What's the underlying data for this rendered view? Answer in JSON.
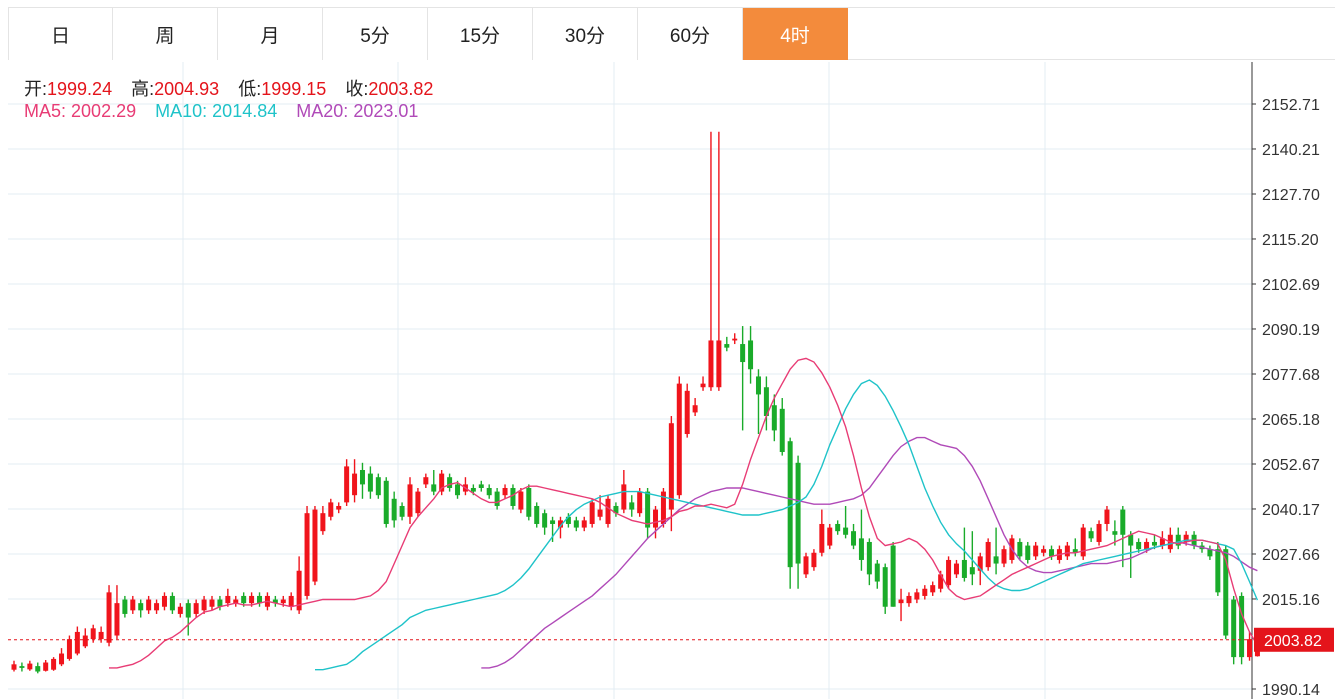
{
  "tabs": [
    {
      "label": "日",
      "active": false
    },
    {
      "label": "周",
      "active": false
    },
    {
      "label": "月",
      "active": false
    },
    {
      "label": "5分",
      "active": false
    },
    {
      "label": "15分",
      "active": false
    },
    {
      "label": "30分",
      "active": false
    },
    {
      "label": "60分",
      "active": false
    },
    {
      "label": "4时",
      "active": true
    }
  ],
  "ohlc": {
    "open_label": "开:",
    "open": "1999.24",
    "high_label": "高:",
    "high": "2004.93",
    "low_label": "低:",
    "low": "1999.15",
    "close_label": "收:",
    "close": "2003.82"
  },
  "ma": {
    "ma5_label": "MA5:",
    "ma5": "2002.29",
    "ma10_label": "MA10:",
    "ma10": "2014.84",
    "ma20_label": "MA20:",
    "ma20": "2023.01"
  },
  "colors": {
    "up": "#f0141c",
    "down": "#1aab2a",
    "ma5": "#e83c75",
    "ma10": "#1fc3c9",
    "ma20": "#b04ab8",
    "grid": "#e3ecf3",
    "accent": "#f38b3c",
    "last_price": "#e4141b"
  },
  "chart_data": {
    "type": "candlestick",
    "y_ticks": [
      "2152.71",
      "2140.21",
      "2127.70",
      "2115.20",
      "2102.69",
      "2090.19",
      "2077.68",
      "2065.18",
      "2052.67",
      "2040.17",
      "2027.66",
      "2015.16",
      "1990.14"
    ],
    "ylim": [
      1988.0,
      2168.0
    ],
    "last_price_label": "2003.82",
    "last_price": 2003.82,
    "grid": true,
    "candles": [
      [
        1995.5,
        1997.0,
        1998.0,
        1995.0
      ],
      [
        1996.5,
        1996.0,
        1997.5,
        1995.0
      ],
      [
        1995.6,
        1997.2,
        1998.0,
        1995.2
      ],
      [
        1996.5,
        1995.0,
        1997.5,
        1994.5
      ],
      [
        1995.2,
        1997.5,
        1998.2,
        1995.0
      ],
      [
        1995.5,
        1998.5,
        1999.0,
        1995.2
      ],
      [
        1997.0,
        2000.0,
        2001.5,
        1996.5
      ],
      [
        1998.5,
        2004.0,
        2005.0,
        1998.0
      ],
      [
        2000.0,
        2006.0,
        2007.5,
        1999.5
      ],
      [
        2002.0,
        2005.0,
        2007.0,
        2001.5
      ],
      [
        2004.0,
        2007.0,
        2008.0,
        2003.0
      ],
      [
        2004.0,
        2006.0,
        2007.5,
        2003.0
      ],
      [
        2003.0,
        2017.0,
        2019.0,
        2002.0
      ],
      [
        2005.0,
        2014.0,
        2019.0,
        2004.0
      ],
      [
        2015.0,
        2011.0,
        2016.0,
        2010.0
      ],
      [
        2012.0,
        2015.0,
        2016.0,
        2011.0
      ],
      [
        2014.0,
        2012.0,
        2015.0,
        2010.0
      ],
      [
        2012.0,
        2015.0,
        2016.0,
        2011.0
      ],
      [
        2012.0,
        2014.0,
        2015.0,
        2011.0
      ],
      [
        2013.0,
        2016.0,
        2017.0,
        2012.0
      ],
      [
        2016.0,
        2012.0,
        2017.0,
        2011.0
      ],
      [
        2011.0,
        2013.0,
        2014.0,
        2010.0
      ],
      [
        2014.0,
        2010.0,
        2015.0,
        2005.0
      ],
      [
        2011.0,
        2014.0,
        2015.0,
        2010.0
      ],
      [
        2012.0,
        2015.0,
        2016.0,
        2011.0
      ],
      [
        2013.0,
        2015.0,
        2016.0,
        2012.0
      ],
      [
        2015.0,
        2013.0,
        2016.0,
        2012.0
      ],
      [
        2014.0,
        2016.0,
        2018.0,
        2013.0
      ],
      [
        2014.0,
        2015.0,
        2016.0,
        2013.0
      ],
      [
        2016.0,
        2014.0,
        2017.0,
        2013.0
      ],
      [
        2014.0,
        2016.0,
        2017.0,
        2013.0
      ],
      [
        2016.0,
        2014.0,
        2017.0,
        2013.0
      ],
      [
        2013.0,
        2016.0,
        2017.0,
        2012.0
      ],
      [
        2015.0,
        2014.0,
        2016.0,
        2013.0
      ],
      [
        2014.0,
        2015.0,
        2016.0,
        2013.0
      ],
      [
        2013.0,
        2016.0,
        2017.0,
        2012.0
      ],
      [
        2012.0,
        2023.0,
        2027.0,
        2011.0
      ],
      [
        2016.0,
        2039.0,
        2041.0,
        2015.0
      ],
      [
        2020.0,
        2040.0,
        2041.0,
        2019.0
      ],
      [
        2034.0,
        2039.0,
        2041.0,
        2033.0
      ],
      [
        2038.0,
        2042.0,
        2043.0,
        2037.0
      ],
      [
        2040.0,
        2041.0,
        2042.0,
        2039.0
      ],
      [
        2042.0,
        2052.0,
        2054.0,
        2041.0
      ],
      [
        2044.0,
        2050.0,
        2054.0,
        2042.0
      ],
      [
        2051.0,
        2047.0,
        2053.0,
        2043.0
      ],
      [
        2050.0,
        2045.0,
        2052.0,
        2043.0
      ],
      [
        2049.0,
        2044.0,
        2050.0,
        2043.0
      ],
      [
        2048.0,
        2036.0,
        2049.0,
        2035.0
      ],
      [
        2043.0,
        2037.0,
        2045.0,
        2035.0
      ],
      [
        2041.0,
        2038.0,
        2042.0,
        2037.0
      ],
      [
        2038.0,
        2047.0,
        2049.0,
        2036.0
      ],
      [
        2039.0,
        2045.0,
        2046.0,
        2038.0
      ],
      [
        2047.0,
        2049.0,
        2050.0,
        2046.0
      ],
      [
        2047.0,
        2045.0,
        2051.0,
        2044.0
      ],
      [
        2045.0,
        2050.0,
        2051.0,
        2044.0
      ],
      [
        2049.0,
        2046.0,
        2050.0,
        2045.0
      ],
      [
        2047.0,
        2044.0,
        2048.0,
        2043.0
      ],
      [
        2045.0,
        2047.0,
        2049.0,
        2044.0
      ],
      [
        2046.0,
        2045.0,
        2047.0,
        2044.0
      ],
      [
        2047.0,
        2046.0,
        2048.0,
        2045.0
      ],
      [
        2046.0,
        2044.0,
        2047.0,
        2043.0
      ],
      [
        2045.0,
        2041.0,
        2046.0,
        2040.0
      ],
      [
        2044.0,
        2046.0,
        2047.0,
        2043.0
      ],
      [
        2046.0,
        2041.0,
        2047.0,
        2040.0
      ],
      [
        2040.0,
        2045.0,
        2046.0,
        2039.0
      ],
      [
        2046.0,
        2038.0,
        2047.0,
        2037.0
      ],
      [
        2041.0,
        2036.0,
        2042.0,
        2035.0
      ],
      [
        2039.0,
        2035.0,
        2040.0,
        2033.0
      ],
      [
        2037.0,
        2036.0,
        2038.0,
        2031.0
      ],
      [
        2035.0,
        2037.0,
        2038.0,
        2032.0
      ],
      [
        2038.0,
        2036.0,
        2039.0,
        2035.0
      ],
      [
        2037.0,
        2035.0,
        2038.0,
        2034.0
      ],
      [
        2035.0,
        2037.0,
        2038.0,
        2034.0
      ],
      [
        2036.0,
        2042.0,
        2043.0,
        2035.0
      ],
      [
        2038.0,
        2040.0,
        2044.0,
        2037.0
      ],
      [
        2036.0,
        2043.0,
        2044.0,
        2035.0
      ],
      [
        2041.0,
        2039.0,
        2042.0,
        2038.0
      ],
      [
        2040.0,
        2047.0,
        2051.0,
        2039.0
      ],
      [
        2042.0,
        2040.0,
        2044.0,
        2038.0
      ],
      [
        2039.0,
        2045.0,
        2046.0,
        2038.0
      ],
      [
        2045.0,
        2035.0,
        2046.0,
        2032.0
      ],
      [
        2035.0,
        2040.0,
        2041.0,
        2032.0
      ],
      [
        2036.0,
        2045.0,
        2046.0,
        2035.0
      ],
      [
        2040.0,
        2064.0,
        2066.0,
        2034.0
      ],
      [
        2044.0,
        2075.0,
        2077.0,
        2043.0
      ],
      [
        2061.0,
        2073.0,
        2075.0,
        2060.0
      ],
      [
        2067.0,
        2069.0,
        2071.0,
        2066.0
      ],
      [
        2074.0,
        2075.0,
        2077.0,
        2073.0
      ],
      [
        2074.0,
        2087.0,
        2145.0,
        2073.0
      ],
      [
        2074.0,
        2087.0,
        2145.0,
        2073.0
      ],
      [
        2086.0,
        2085.0,
        2088.0,
        2084.0
      ],
      [
        2087.0,
        2087.5,
        2089.0,
        2086.0
      ],
      [
        2086.0,
        2081.0,
        2091.0,
        2062.0
      ],
      [
        2087.0,
        2079.0,
        2091.0,
        2075.0
      ],
      [
        2077.0,
        2072.0,
        2079.0,
        2061.0
      ],
      [
        2074.0,
        2066.0,
        2077.0,
        2062.0
      ],
      [
        2069.0,
        2062.0,
        2072.0,
        2059.0
      ],
      [
        2068.0,
        2056.0,
        2071.0,
        2055.0
      ],
      [
        2059.0,
        2024.0,
        2060.0,
        2018.0
      ],
      [
        2053.0,
        2025.0,
        2055.0,
        2018.0
      ],
      [
        2022.0,
        2027.0,
        2028.0,
        2021.0
      ],
      [
        2024.0,
        2028.0,
        2029.0,
        2023.0
      ],
      [
        2028.0,
        2036.0,
        2040.0,
        2027.0
      ],
      [
        2030.0,
        2035.0,
        2036.0,
        2029.0
      ],
      [
        2036.0,
        2034.0,
        2037.0,
        2033.0
      ],
      [
        2035.0,
        2033.0,
        2041.0,
        2032.0
      ],
      [
        2034.0,
        2030.0,
        2036.0,
        2029.0
      ],
      [
        2032.0,
        2026.0,
        2040.0,
        2023.0
      ],
      [
        2031.0,
        2022.0,
        2032.0,
        2019.0
      ],
      [
        2025.0,
        2020.0,
        2026.0,
        2018.0
      ],
      [
        2024.0,
        2013.0,
        2025.0,
        2011.0
      ],
      [
        2030.0,
        2013.0,
        2031.0,
        2013.0
      ],
      [
        2014.0,
        2015.0,
        2018.0,
        2009.0
      ],
      [
        2014.0,
        2016.0,
        2017.0,
        2013.0
      ],
      [
        2015.0,
        2017.0,
        2018.0,
        2014.0
      ],
      [
        2016.0,
        2018.0,
        2019.0,
        2015.0
      ],
      [
        2017.0,
        2019.0,
        2020.0,
        2016.0
      ],
      [
        2018.0,
        2022.0,
        2023.0,
        2017.0
      ],
      [
        2019.0,
        2026.0,
        2027.0,
        2018.0
      ],
      [
        2022.0,
        2025.0,
        2026.0,
        2021.0
      ],
      [
        2026.0,
        2021.0,
        2035.0,
        2020.0
      ],
      [
        2024.0,
        2022.0,
        2034.0,
        2019.0
      ],
      [
        2023.0,
        2027.0,
        2028.0,
        2019.0
      ],
      [
        2024.0,
        2031.0,
        2032.0,
        2023.0
      ],
      [
        2027.0,
        2025.0,
        2035.0,
        2022.0
      ],
      [
        2025.0,
        2029.0,
        2030.0,
        2024.0
      ],
      [
        2026.0,
        2032.0,
        2033.0,
        2025.0
      ],
      [
        2031.0,
        2027.0,
        2032.0,
        2026.0
      ],
      [
        2030.0,
        2026.0,
        2031.0,
        2025.0
      ],
      [
        2027.0,
        2030.0,
        2031.0,
        2026.0
      ],
      [
        2028.0,
        2029.0,
        2030.0,
        2027.0
      ],
      [
        2029.0,
        2027.0,
        2030.0,
        2026.0
      ],
      [
        2026.0,
        2029.0,
        2030.0,
        2025.0
      ],
      [
        2027.0,
        2030.0,
        2031.0,
        2026.0
      ],
      [
        2029.0,
        2028.0,
        2032.0,
        2027.0
      ],
      [
        2027.0,
        2035.0,
        2036.0,
        2026.0
      ],
      [
        2034.0,
        2032.0,
        2035.0,
        2031.0
      ],
      [
        2031.0,
        2036.0,
        2037.0,
        2030.0
      ],
      [
        2036.0,
        2040.0,
        2041.0,
        2034.0
      ],
      [
        2034.0,
        2033.0,
        2037.0,
        2030.0
      ],
      [
        2040.0,
        2033.0,
        2041.0,
        2024.0
      ],
      [
        2033.0,
        2030.0,
        2034.0,
        2021.0
      ],
      [
        2031.0,
        2029.0,
        2032.0,
        2028.0
      ],
      [
        2029.0,
        2031.0,
        2032.0,
        2028.0
      ],
      [
        2031.0,
        2030.0,
        2033.0,
        2029.0
      ],
      [
        2030.0,
        2032.0,
        2034.0,
        2029.0
      ],
      [
        2029.0,
        2033.0,
        2035.0,
        2028.0
      ],
      [
        2033.0,
        2030.0,
        2035.0,
        2029.0
      ],
      [
        2031.0,
        2033.0,
        2034.0,
        2030.0
      ],
      [
        2033.0,
        2030.0,
        2034.0,
        2029.0
      ],
      [
        2030.0,
        2029.0,
        2031.0,
        2028.0
      ],
      [
        2029.0,
        2027.0,
        2030.0,
        2026.0
      ],
      [
        2029.0,
        2017.0,
        2031.0,
        2016.0
      ],
      [
        2029.0,
        2005.0,
        2030.0,
        2004.0
      ],
      [
        2015.0,
        1999.0,
        2016.0,
        1997.0
      ],
      [
        2016.0,
        1999.0,
        2017.0,
        1997.0
      ],
      [
        1999.0,
        2004.0,
        2006.0,
        1998.0
      ],
      [
        1999.24,
        2003.82,
        2004.93,
        1999.15
      ]
    ],
    "ma5": [
      1996.0,
      1996.0,
      1996.5,
      1997.0,
      1998.0,
      1999.5,
      2001.5,
      2003.5,
      2004.5,
      2006.0,
      2008.0,
      2010.0,
      2011.5,
      2012.0,
      2013.0,
      2013.5,
      2014.0,
      2013.5,
      2013.5,
      2014.0,
      2014.5,
      2014.0,
      2013.5,
      2013.0,
      2013.5,
      2014.0,
      2014.5,
      2015.0,
      2015.0,
      2015.0,
      2015.0,
      2015.0,
      2015.5,
      2016.0,
      2017.5,
      2020.0,
      2025.0,
      2030.0,
      2035.0,
      2038.0,
      2040.5,
      2043.0,
      2046.0,
      2047.0,
      2047.5,
      2046.0,
      2044.5,
      2043.0,
      2042.0,
      2042.0,
      2043.0,
      2044.0,
      2045.5,
      2046.5,
      2046.5,
      2046.0,
      2045.5,
      2045.0,
      2044.5,
      2044.0,
      2043.5,
      2043.0,
      2042.0,
      2040.5,
      2039.0,
      2038.0,
      2037.0,
      2036.5,
      2036.0,
      2036.5,
      2037.0,
      2038.0,
      2039.5,
      2040.0,
      2041.0,
      2041.0,
      2041.5,
      2041.0,
      2040.5,
      2041.5,
      2047.0,
      2054.0,
      2060.0,
      2066.0,
      2071.0,
      2075.0,
      2079.0,
      2081.5,
      2082.0,
      2081.0,
      2078.0,
      2074.0,
      2069.0,
      2063.0,
      2055.0,
      2046.0,
      2038.0,
      2032.0,
      2030.0,
      2030.5,
      2031.0,
      2032.0,
      2031.0,
      2029.0,
      2026.0,
      2022.0,
      2018.0,
      2016.0,
      2015.0,
      2015.5,
      2016.0,
      2017.5,
      2019.0,
      2020.5,
      2022.0,
      2023.0,
      2024.0,
      2025.0,
      2026.0,
      2027.0,
      2027.5,
      2028.0,
      2028.0,
      2028.5,
      2029.0,
      2029.5,
      2030.0,
      2031.0,
      2032.0,
      2033.0,
      2034.0,
      2033.5,
      2033.0,
      2032.0,
      2031.0,
      2030.5,
      2031.0,
      2031.5,
      2031.5,
      2031.0,
      2030.5,
      2026.0,
      2018.0,
      2011.0,
      2006.0,
      2002.29
    ],
    "ma10": [
      1995.5,
      1995.5,
      1996.0,
      1996.5,
      1997.0,
      1998.5,
      2000.5,
      2002.0,
      2003.5,
      2005.0,
      2006.5,
      2008.0,
      2010.0,
      2011.0,
      2012.0,
      2012.5,
      2013.0,
      2013.5,
      2014.0,
      2014.5,
      2015.0,
      2015.5,
      2016.0,
      2016.5,
      2017.5,
      2019.0,
      2021.0,
      2023.5,
      2026.5,
      2029.5,
      2032.5,
      2035.5,
      2038.0,
      2040.0,
      2041.5,
      2042.5,
      2043.5,
      2044.0,
      2044.5,
      2045.0,
      2045.0,
      2045.0,
      2044.5,
      2044.0,
      2043.5,
      2043.0,
      2042.5,
      2042.0,
      2041.5,
      2041.0,
      2040.5,
      2040.0,
      2039.5,
      2039.0,
      2038.5,
      2038.5,
      2038.5,
      2039.0,
      2039.5,
      2040.0,
      2041.0,
      2042.0,
      2043.5,
      2047.0,
      2052.0,
      2058.0,
      2063.0,
      2068.0,
      2072.0,
      2075.0,
      2076.0,
      2074.5,
      2071.5,
      2067.5,
      2063.0,
      2058.0,
      2052.0,
      2046.0,
      2041.0,
      2036.5,
      2033.0,
      2030.5,
      2028.5,
      2026.0,
      2023.5,
      2021.0,
      2019.0,
      2018.0,
      2017.5,
      2017.5,
      2018.0,
      2019.0,
      2020.0,
      2021.0,
      2022.0,
      2023.0,
      2024.0,
      2025.0,
      2025.5,
      2026.0,
      2026.5,
      2027.0,
      2027.5,
      2028.0,
      2028.5,
      2029.0,
      2029.5,
      2030.0,
      2030.5,
      2031.0,
      2031.5,
      2031.5,
      2031.5,
      2031.0,
      2030.5,
      2030.0,
      2029.0,
      2025.0,
      2020.0,
      2014.84
    ],
    "ma20": [
      1996.0,
      1996.0,
      1996.5,
      1997.5,
      1999.0,
      2001.0,
      2003.0,
      2005.0,
      2007.0,
      2008.5,
      2010.0,
      2011.5,
      2013.0,
      2014.5,
      2016.0,
      2018.0,
      2020.0,
      2022.0,
      2024.5,
      2027.0,
      2029.5,
      2032.0,
      2034.0,
      2036.0,
      2038.0,
      2040.0,
      2041.5,
      2043.0,
      2044.0,
      2045.0,
      2045.5,
      2046.0,
      2046.0,
      2046.0,
      2045.5,
      2045.0,
      2044.5,
      2044.0,
      2043.5,
      2043.0,
      2042.5,
      2042.0,
      2041.5,
      2041.5,
      2041.5,
      2042.0,
      2042.5,
      2043.0,
      2044.0,
      2046.0,
      2049.0,
      2052.0,
      2055.0,
      2057.5,
      2059.0,
      2060.0,
      2060.0,
      2059.0,
      2058.0,
      2057.5,
      2057.0,
      2055.0,
      2052.0,
      2048.0,
      2043.0,
      2038.0,
      2033.0,
      2029.0,
      2026.0,
      2024.0,
      2023.0,
      2022.5,
      2022.5,
      2023.0,
      2023.5,
      2024.0,
      2024.5,
      2025.0,
      2025.0,
      2025.0,
      2025.5,
      2026.0,
      2026.5,
      2027.5,
      2028.5,
      2029.5,
      2030.0,
      2030.5,
      2031.0,
      2030.5,
      2030.0,
      2029.5,
      2029.0,
      2028.5,
      2028.0,
      2027.0,
      2025.5,
      2024.0,
      2023.01
    ]
  }
}
